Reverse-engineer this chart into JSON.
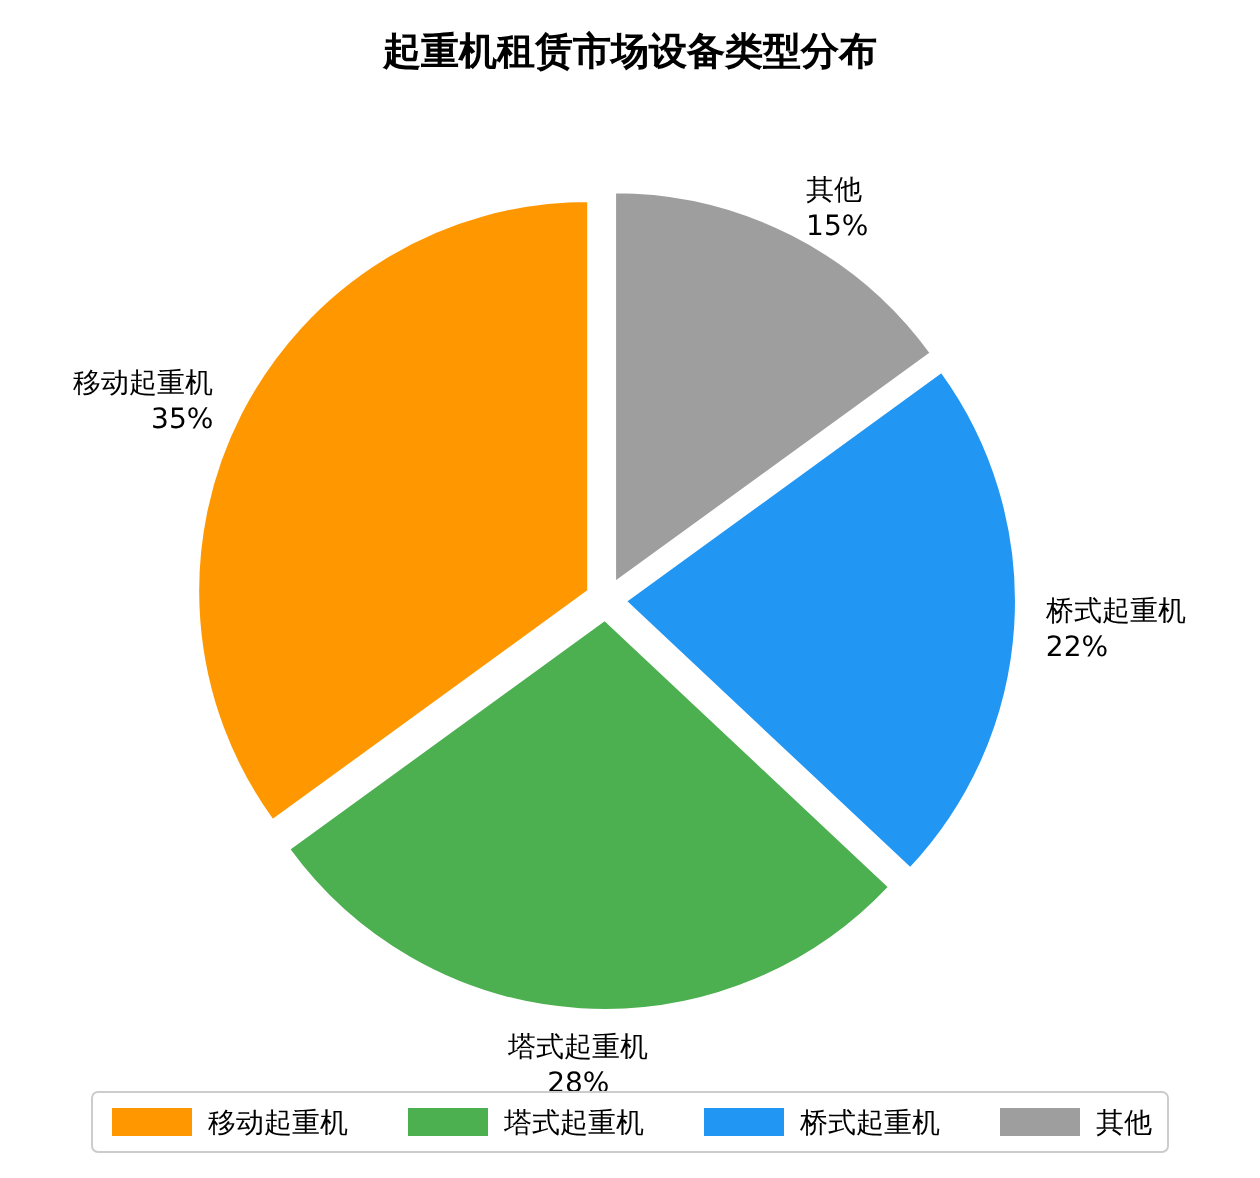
{
  "chart_data": {
    "type": "pie",
    "title": "起重机租赁市场设备类型分布",
    "categories": [
      "移动起重机",
      "塔式起重机",
      "桥式起重机",
      "其他"
    ],
    "values": [
      35,
      28,
      22,
      15
    ],
    "colors": [
      "#ff9800",
      "#4caf50",
      "#2196f3",
      "#9e9e9e"
    ],
    "value_labels": [
      "35%",
      "28%",
      "22%",
      "15%"
    ],
    "legend": "bottom"
  }
}
